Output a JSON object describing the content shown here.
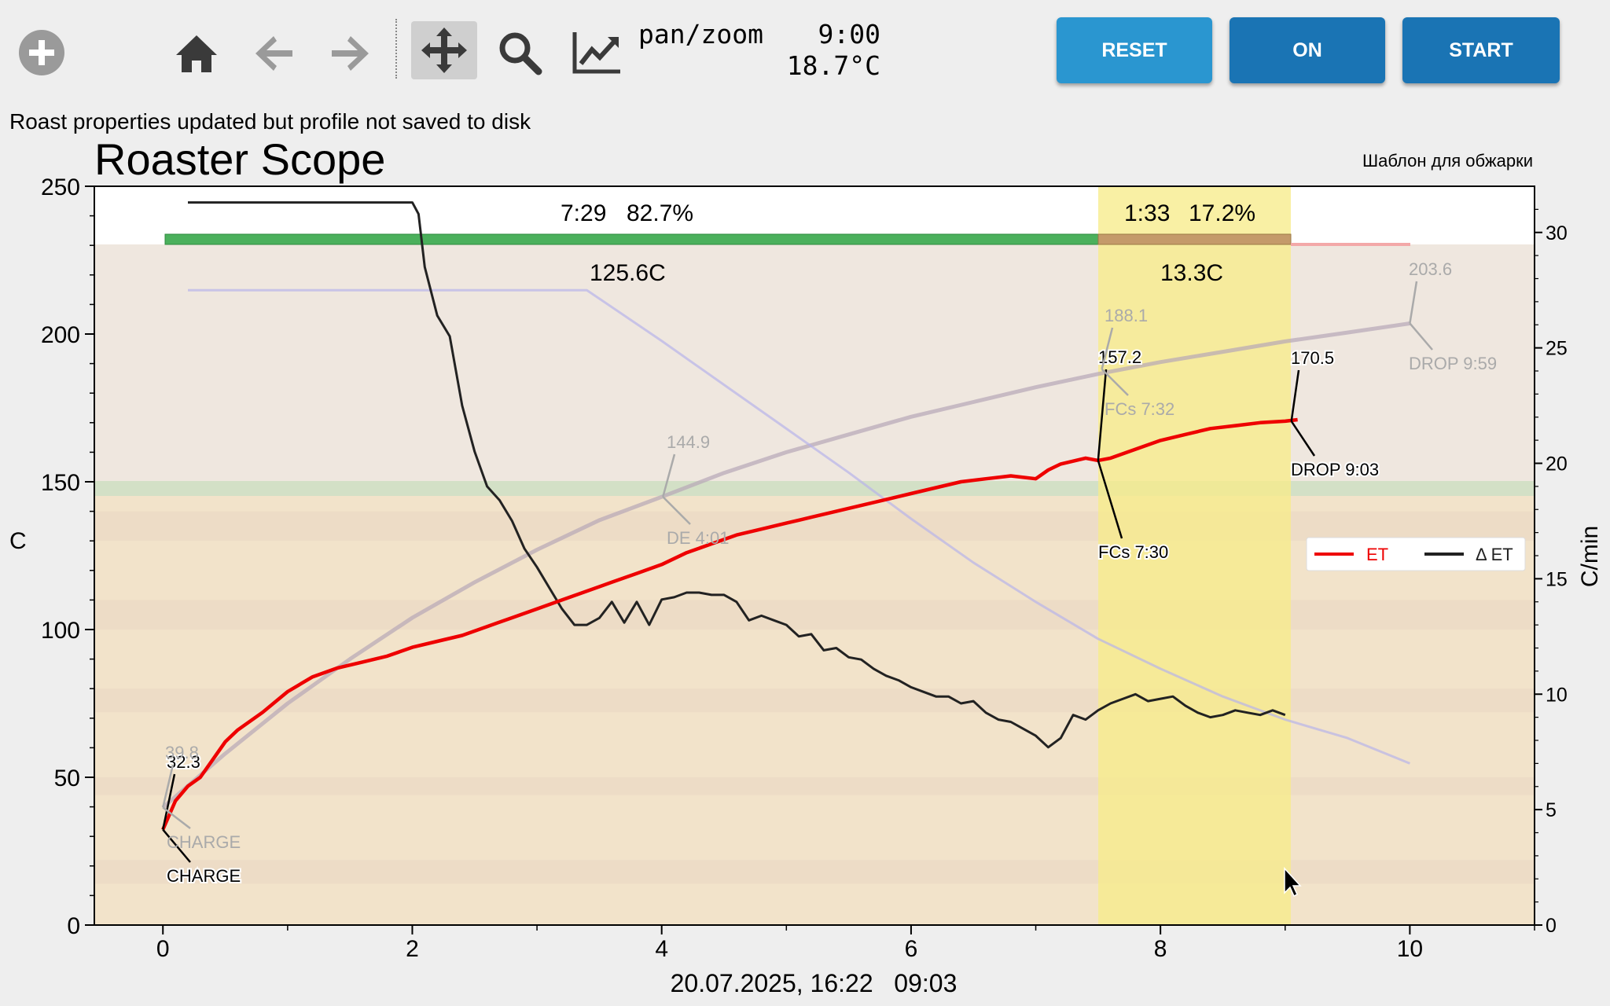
{
  "toolbar": {
    "icons": [
      "add-circle-icon",
      "home-icon",
      "back-arrow-icon",
      "forward-arrow-icon",
      "pan-move-icon",
      "zoom-search-icon",
      "configure-lines-icon"
    ],
    "mode": "pan/zoom",
    "timer": "9:00",
    "temperature": "18.7°C",
    "buttons": {
      "reset": {
        "label": "RESET",
        "color": "#2a96d0"
      },
      "on": {
        "label": "ON",
        "color": "#1a74b4"
      },
      "start": {
        "label": "START",
        "color": "#1a74b4"
      }
    }
  },
  "status_message": "Roast properties updated but profile not saved to disk",
  "chart_data": {
    "type": "line",
    "title": "Roaster Scope",
    "subtitle": "Шаблон для обжарки",
    "xlabel": "20.07.2025, 16:22   09:03",
    "ylabel": "C",
    "y2label": "C/min",
    "xlim": [
      -0.55,
      11
    ],
    "ylim": [
      0,
      250
    ],
    "y2lim": [
      0,
      32
    ],
    "xticks": [
      "0",
      "2",
      "4",
      "6",
      "8",
      "10"
    ],
    "yticks": [
      "0",
      "50",
      "100",
      "150",
      "200",
      "250"
    ],
    "y2ticks": [
      "0",
      "5",
      "10",
      "15",
      "20",
      "25",
      "30"
    ],
    "legend": {
      "position": "right",
      "entries": [
        {
          "label": "ET",
          "color": "#ee0000"
        },
        {
          "label": "Δ ET",
          "color": "#222222"
        }
      ]
    },
    "phases": [
      {
        "duration": "7:29",
        "percent": "82.7%",
        "delta": "125.6C"
      },
      {
        "duration": "1:33",
        "percent": "17.2%",
        "delta": "13.3C"
      }
    ],
    "series": [
      {
        "name": "ET",
        "color": "#ee0000",
        "x": [
          0,
          0.1,
          0.2,
          0.3,
          0.4,
          0.5,
          0.6,
          0.8,
          1.0,
          1.2,
          1.4,
          1.6,
          1.8,
          2.0,
          2.2,
          2.4,
          2.6,
          2.8,
          3.0,
          3.2,
          3.4,
          3.6,
          3.8,
          4.0,
          4.2,
          4.4,
          4.6,
          4.8,
          5.0,
          5.2,
          5.4,
          5.6,
          5.8,
          6.0,
          6.2,
          6.4,
          6.6,
          6.8,
          7.0,
          7.1,
          7.2,
          7.4,
          7.5,
          7.6,
          7.8,
          8.0,
          8.2,
          8.4,
          8.6,
          8.8,
          9.0,
          9.1
        ],
        "y": [
          32.3,
          42,
          47,
          50,
          56,
          62,
          66,
          72,
          79,
          84,
          87,
          89,
          91,
          94,
          96,
          98,
          101,
          104,
          107,
          110,
          113,
          116,
          119,
          122,
          126,
          129,
          132,
          134,
          136,
          138,
          140,
          142,
          144,
          146,
          148,
          150,
          151,
          152,
          151,
          154,
          156,
          158,
          157.2,
          158,
          161,
          164,
          166,
          168,
          169,
          170,
          170.5,
          171
        ]
      },
      {
        "name": "Δ ET",
        "color": "#222222",
        "axis": "y2",
        "x": [
          0.2,
          1.0,
          1.5,
          1.9,
          2.0,
          2.05,
          2.1,
          2.2,
          2.3,
          2.4,
          2.5,
          2.6,
          2.7,
          2.8,
          2.9,
          3.0,
          3.1,
          3.2,
          3.3,
          3.4,
          3.5,
          3.6,
          3.7,
          3.8,
          3.9,
          4.0,
          4.1,
          4.2,
          4.3,
          4.4,
          4.5,
          4.6,
          4.7,
          4.8,
          4.9,
          5.0,
          5.1,
          5.2,
          5.3,
          5.4,
          5.5,
          5.6,
          5.7,
          5.8,
          5.9,
          6.0,
          6.1,
          6.2,
          6.3,
          6.4,
          6.5,
          6.6,
          6.7,
          6.8,
          6.9,
          7.0,
          7.1,
          7.2,
          7.3,
          7.4,
          7.5,
          7.6,
          7.7,
          7.8,
          7.9,
          8.0,
          8.1,
          8.2,
          8.3,
          8.4,
          8.5,
          8.6,
          8.7,
          8.8,
          8.9,
          9.0
        ],
        "y": [
          31.3,
          31.3,
          31.3,
          31.3,
          31.3,
          30.8,
          28.5,
          26.4,
          25.5,
          22.5,
          20.5,
          19.0,
          18.4,
          17.5,
          16.3,
          15.5,
          14.6,
          13.7,
          13.0,
          13.0,
          13.3,
          14.0,
          13.1,
          14.0,
          13.0,
          14.1,
          14.2,
          14.4,
          14.4,
          14.3,
          14.3,
          14.0,
          13.2,
          13.4,
          13.2,
          13.0,
          12.5,
          12.6,
          11.9,
          12.0,
          11.6,
          11.5,
          11.1,
          10.8,
          10.6,
          10.3,
          10.1,
          9.9,
          9.9,
          9.6,
          9.7,
          9.2,
          8.9,
          8.8,
          8.5,
          8.2,
          7.7,
          8.1,
          9.1,
          8.9,
          9.3,
          9.6,
          9.8,
          10.0,
          9.7,
          9.8,
          9.9,
          9.5,
          9.2,
          9.0,
          9.1,
          9.3,
          9.2,
          9.1,
          9.3,
          9.1
        ]
      },
      {
        "name": "background-bt",
        "color": "#b6a6b6",
        "x": [
          0,
          0.5,
          1,
          1.5,
          2,
          2.5,
          3,
          3.5,
          4,
          4.5,
          5,
          5.5,
          6,
          6.5,
          7,
          7.5,
          8,
          8.5,
          9,
          9.5,
          10
        ],
        "y": [
          39.8,
          58,
          75,
          90,
          104,
          116,
          127,
          137,
          144.9,
          153,
          160,
          166,
          172,
          177,
          182,
          186.5,
          190.5,
          194,
          197.5,
          200.5,
          203.6
        ]
      },
      {
        "name": "background-delta",
        "color": "#b8b4ea",
        "axis": "y2",
        "x": [
          0.2,
          1,
          2,
          3,
          3.4,
          4,
          4.5,
          5,
          5.5,
          6,
          6.5,
          7,
          7.5,
          8,
          8.5,
          9,
          9.5,
          10
        ],
        "y": [
          27.5,
          27.5,
          27.5,
          27.5,
          27.5,
          25.3,
          23.4,
          21.5,
          19.6,
          17.6,
          15.7,
          14.0,
          12.4,
          11.1,
          9.9,
          8.9,
          8.1,
          7.0
        ]
      }
    ],
    "event_labels": [
      {
        "text": "CHARGE",
        "value": "32.3",
        "series": "ET"
      },
      {
        "text": "FCs 7:30",
        "value": "157.2",
        "series": "ET"
      },
      {
        "text": "DROP 9:03",
        "value": "170.5",
        "series": "ET"
      },
      {
        "text": "CHARGE",
        "value": "39.8",
        "series": "background"
      },
      {
        "text": "DE 4:01",
        "value": "144.9",
        "series": "background"
      },
      {
        "text": "FCs 7:32",
        "value": "188.1",
        "series": "background"
      },
      {
        "text": "DROP 9:59",
        "value": "203.6",
        "series": "background"
      }
    ]
  }
}
